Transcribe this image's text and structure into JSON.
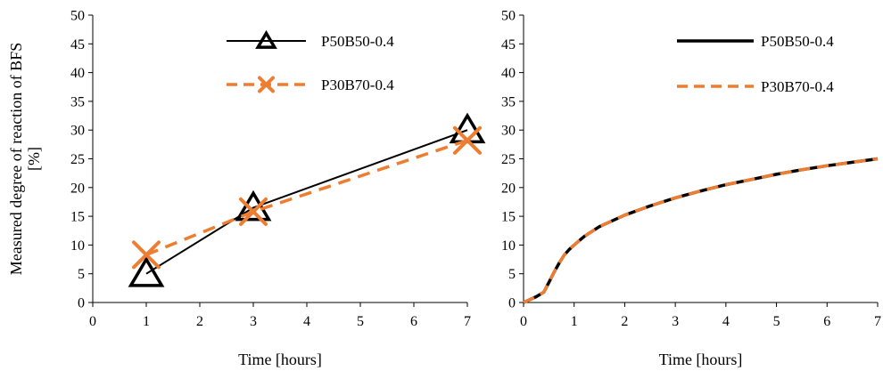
{
  "colors": {
    "axis": "#000000",
    "series_black": "#000000",
    "series_orange": "#ED7D31"
  },
  "chart_data": [
    {
      "type": "line",
      "ylabel": "Measured degree of reaction of BFS [%]",
      "ylabel_lines": [
        "Measured degree of reaction of BFS",
        "[%]"
      ],
      "xlabel": "Time [hours]",
      "xlim": [
        0,
        7
      ],
      "ylim": [
        0,
        50
      ],
      "x_ticks": [
        "0",
        "1",
        "2",
        "3",
        "4",
        "5",
        "6",
        "7"
      ],
      "y_ticks": [
        "0",
        "5",
        "10",
        "15",
        "20",
        "25",
        "30",
        "35",
        "40",
        "45",
        "50"
      ],
      "grid": false,
      "legend_position": "top-center",
      "series": [
        {
          "name": "P50B50-0.4",
          "color": "#000000",
          "line_style": "solid",
          "marker": "triangle",
          "x": [
            1,
            3,
            7
          ],
          "y": [
            5,
            16.5,
            30
          ]
        },
        {
          "name": "P30B70-0.4",
          "color": "#ED7D31",
          "line_style": "dashed",
          "marker": "x",
          "x": [
            1,
            3,
            7
          ],
          "y": [
            8.3,
            15.8,
            28.2
          ]
        }
      ]
    },
    {
      "type": "line",
      "xlabel": "Time [hours]",
      "xlim": [
        0,
        7
      ],
      "ylim": [
        0,
        50
      ],
      "x_ticks": [
        "0",
        "1",
        "2",
        "3",
        "4",
        "5",
        "6",
        "7"
      ],
      "y_ticks": [
        "0",
        "5",
        "10",
        "15",
        "20",
        "25",
        "30",
        "35",
        "40",
        "45",
        "50"
      ],
      "grid": false,
      "legend_position": "top-right",
      "series": [
        {
          "name": "P50B50-0.4",
          "color": "#000000",
          "line_style": "solid",
          "marker": "none",
          "x": [
            0,
            0.25,
            0.4,
            0.5,
            0.6,
            0.7,
            0.8,
            0.9,
            1,
            1.2,
            1.5,
            2,
            2.5,
            3,
            3.5,
            4,
            4.5,
            5,
            5.5,
            6,
            6.5,
            7
          ],
          "y": [
            0,
            1,
            1.8,
            3.5,
            5.2,
            6.8,
            8.2,
            9.2,
            10,
            11.5,
            13.2,
            15.2,
            16.8,
            18.2,
            19.4,
            20.5,
            21.4,
            22.3,
            23.1,
            23.8,
            24.4,
            25
          ]
        },
        {
          "name": "P30B70-0.4",
          "color": "#ED7D31",
          "line_style": "dashed",
          "marker": "none",
          "x": [
            0,
            0.25,
            0.4,
            0.5,
            0.6,
            0.7,
            0.8,
            0.9,
            1,
            1.2,
            1.5,
            2,
            2.5,
            3,
            3.5,
            4,
            4.5,
            5,
            5.5,
            6,
            6.5,
            7
          ],
          "y": [
            0,
            1,
            1.8,
            3.5,
            5.2,
            6.8,
            8.2,
            9.2,
            10,
            11.5,
            13.2,
            15.2,
            16.8,
            18.2,
            19.4,
            20.5,
            21.4,
            22.3,
            23.1,
            23.8,
            24.4,
            25
          ]
        }
      ]
    }
  ]
}
